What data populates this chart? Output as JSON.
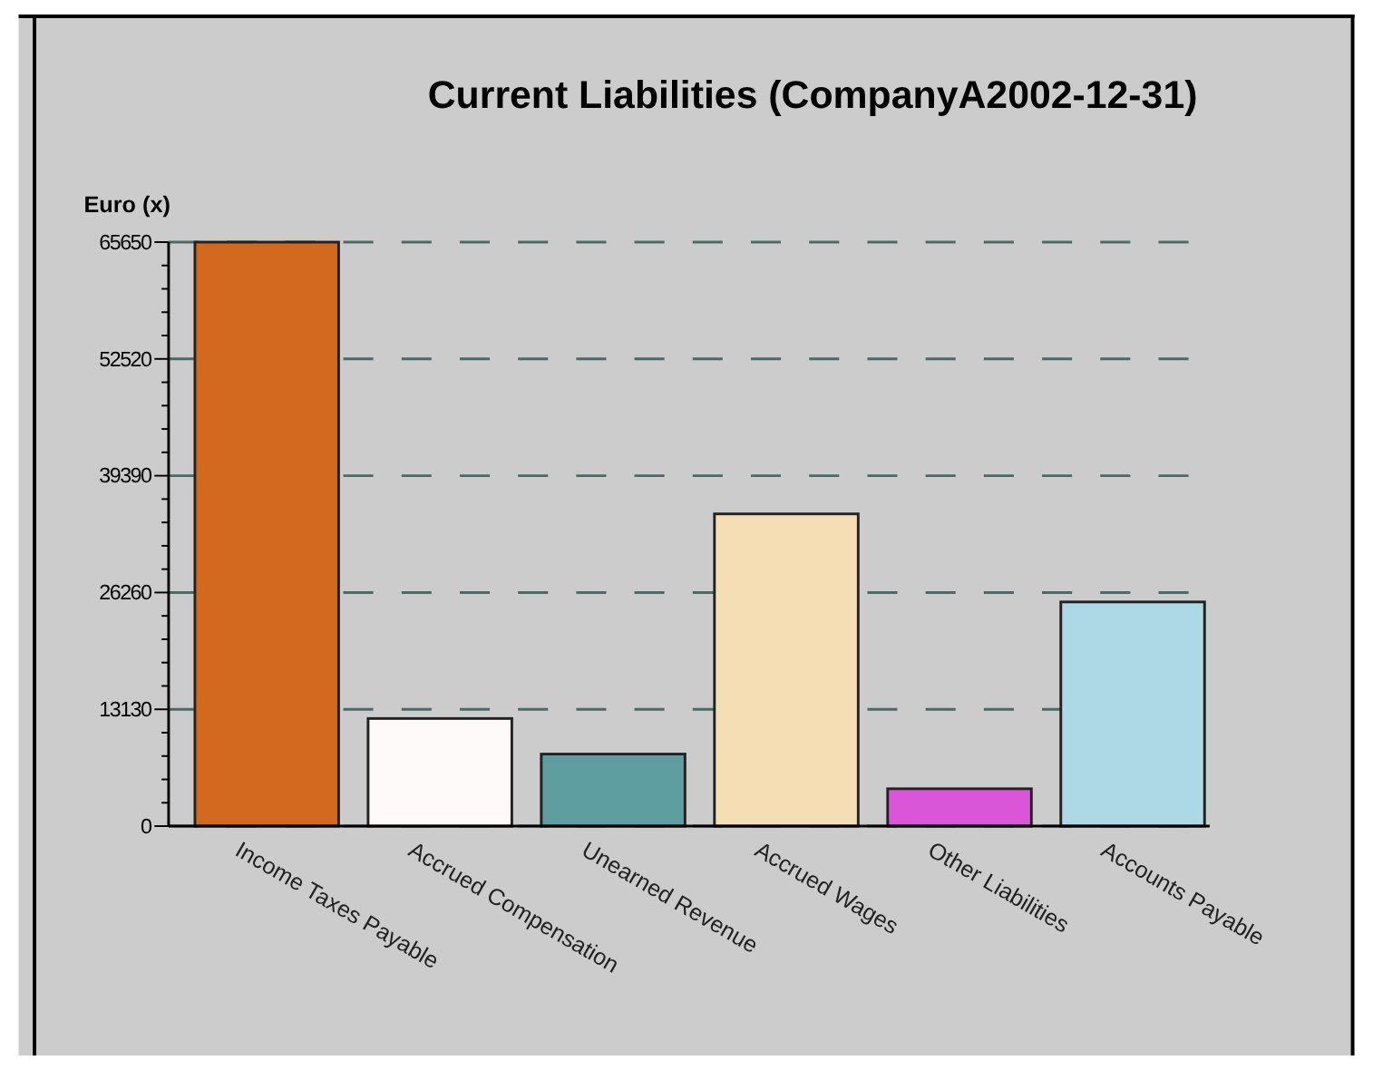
{
  "chart_data": {
    "type": "bar",
    "title": "Current Liabilities (CompanyA2002-12-31)",
    "ylabel": "Euro (x)",
    "categories": [
      "Income Taxes Payable",
      "Accrued Compensation",
      "Unearned Revenue",
      "Accrued Wages",
      "Other Liabilities",
      "Accounts Payable"
    ],
    "values": [
      65650,
      12100,
      8100,
      35100,
      4200,
      25200
    ],
    "colors": [
      "#d2691e",
      "#fffafa",
      "#5f9ea0",
      "#f5deb3",
      "#da55d8",
      "#add8e6"
    ],
    "ylim": [
      0,
      65650
    ],
    "yticks": [
      0,
      13130,
      26260,
      39390,
      52520,
      65650
    ],
    "grid": "y"
  }
}
